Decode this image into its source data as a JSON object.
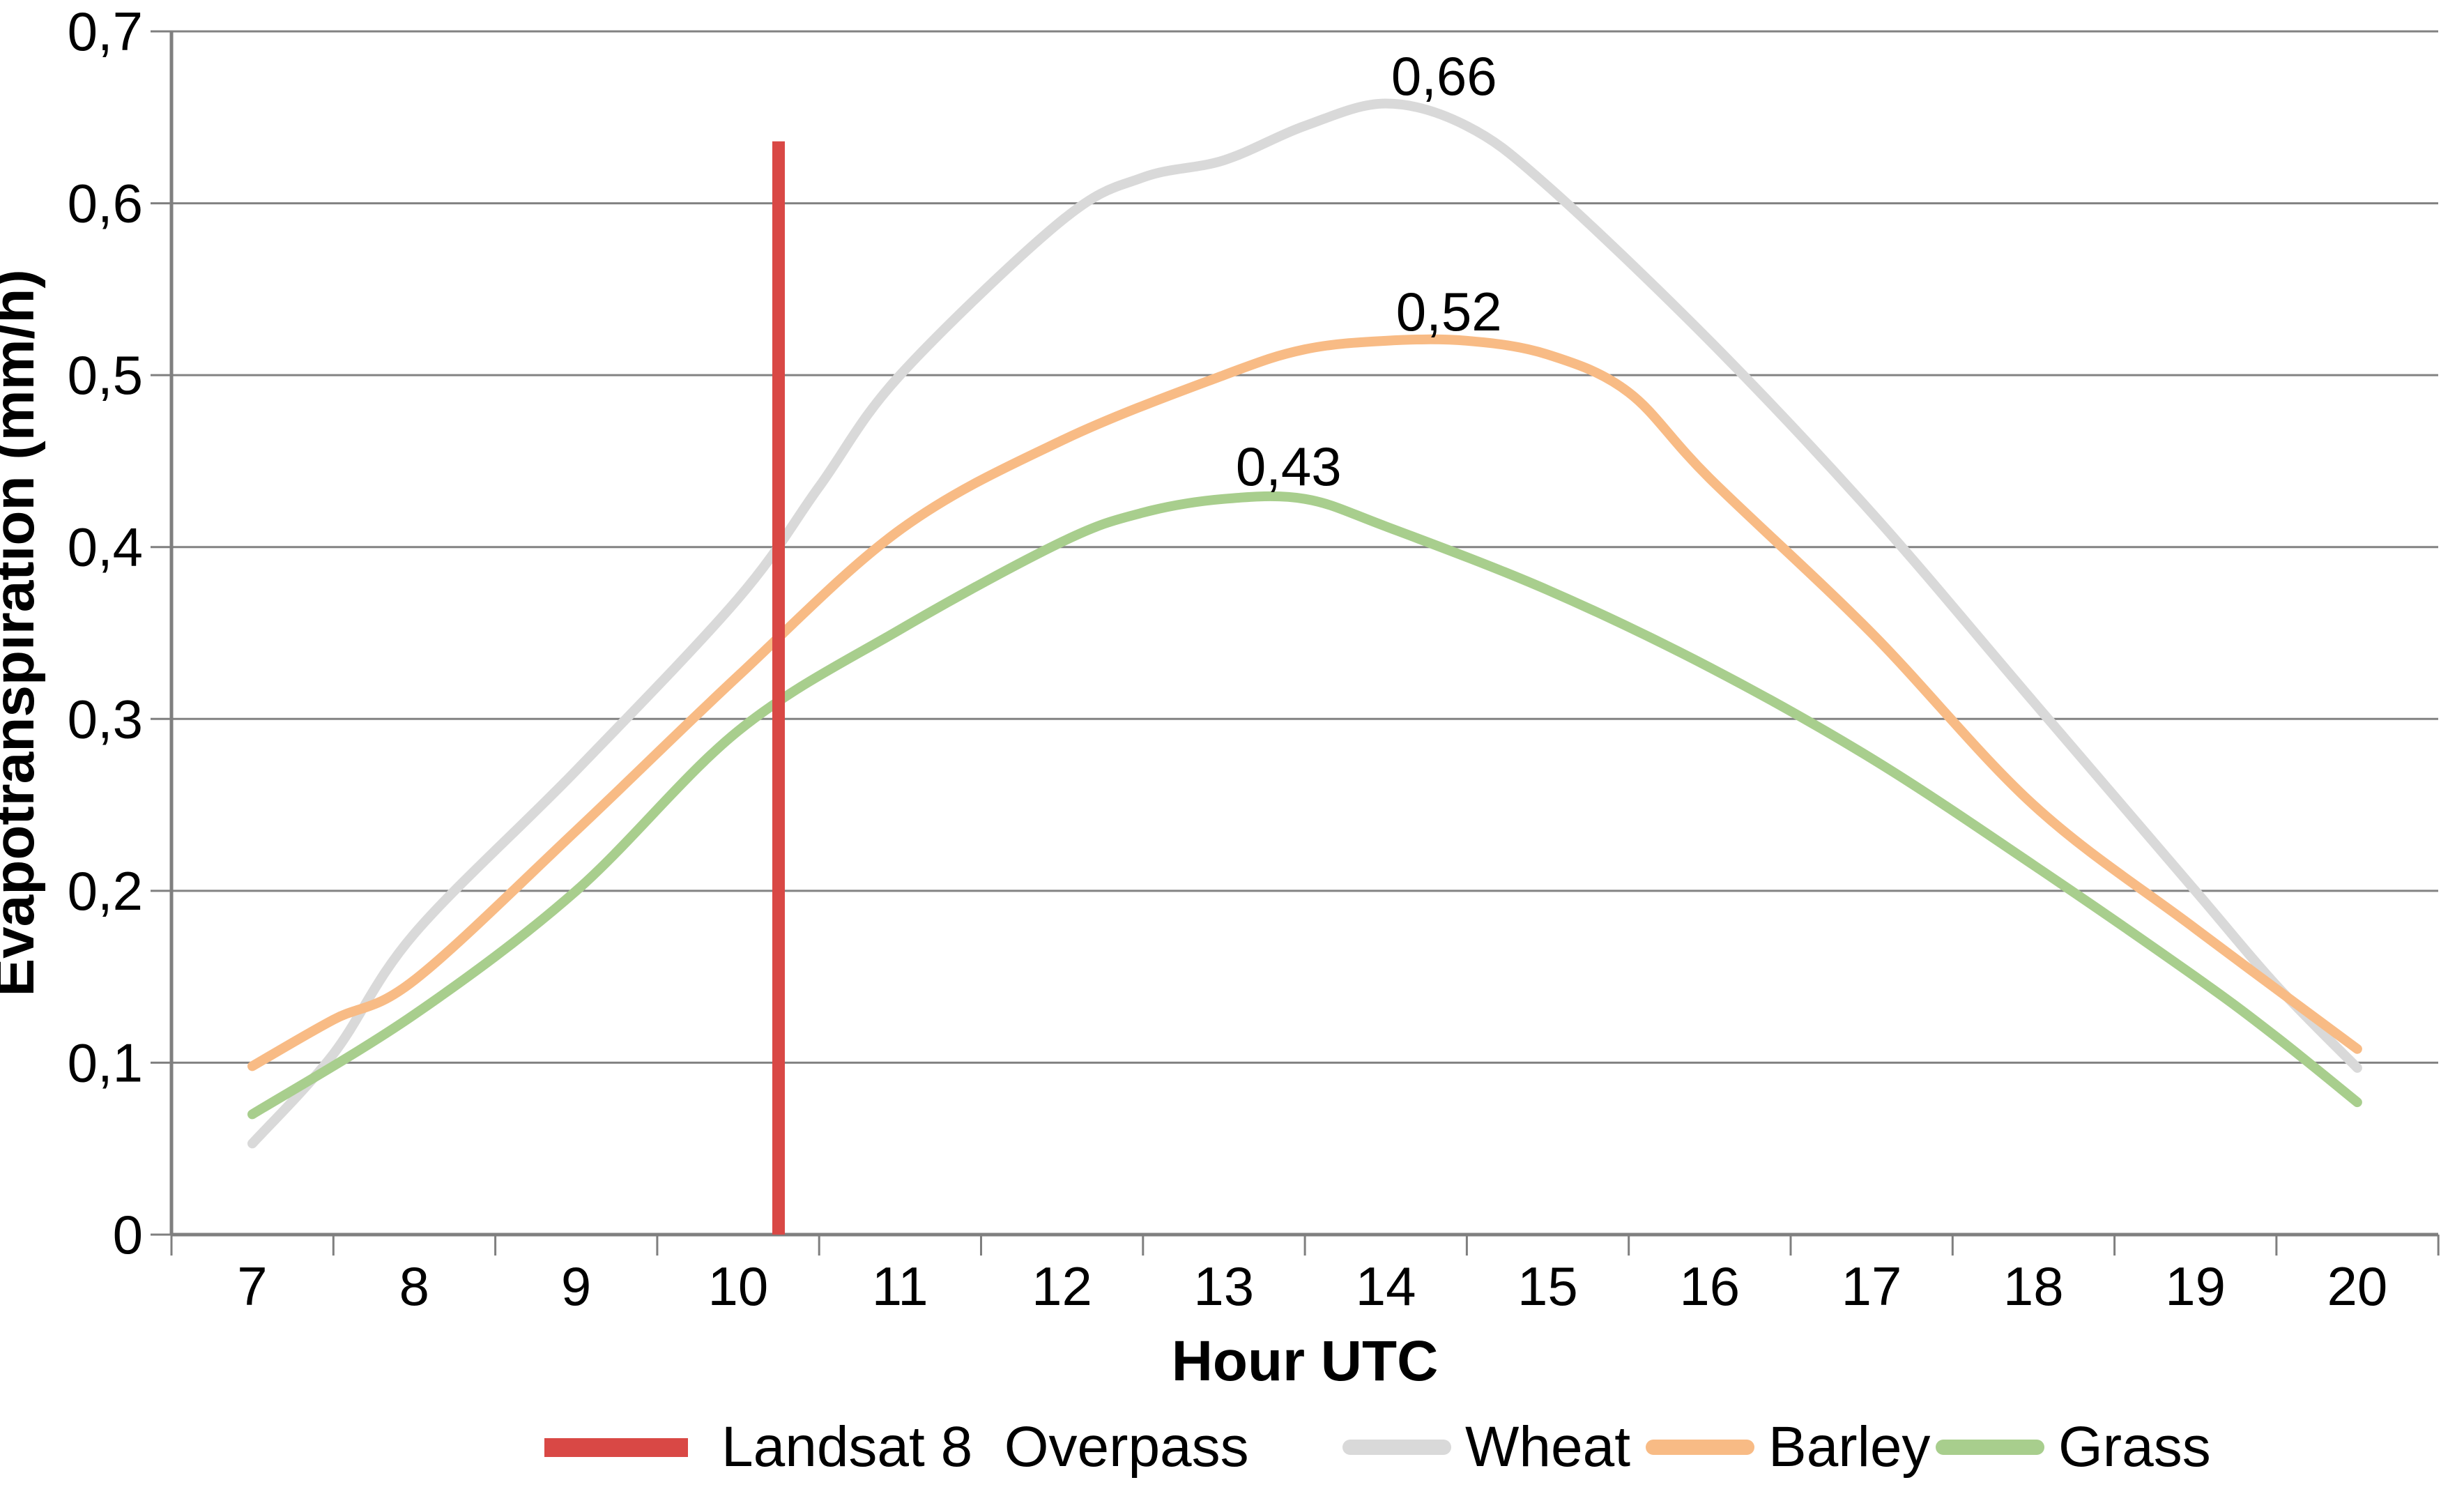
{
  "chart_data": {
    "type": "line",
    "title": "",
    "xlabel": "Hour UTC",
    "ylabel": "Evapotranspiration (mm/h)",
    "x_ticks": [
      "7",
      "8",
      "9",
      "10",
      "11",
      "12",
      "13",
      "14",
      "15",
      "16",
      "17",
      "18",
      "19",
      "20"
    ],
    "y_ticks": [
      "0",
      "0,1",
      "0,2",
      "0,3",
      "0,4",
      "0,5",
      "0,6",
      "0,7"
    ],
    "xlim": [
      6.5,
      20.5
    ],
    "ylim": [
      0,
      0.7
    ],
    "grid": "horizontal-only",
    "legend_position": "bottom",
    "series": [
      {
        "name": "Wheat",
        "color": "#D9D9D9",
        "x": [
          7,
          7.5,
          8,
          9,
          10,
          10.5,
          11,
          12,
          12.5,
          13,
          13.5,
          14,
          14.5,
          15,
          16,
          17,
          18,
          19,
          19.5,
          20
        ],
        "values": [
          0.053,
          0.105,
          0.175,
          0.27,
          0.37,
          0.435,
          0.5,
          0.59,
          0.615,
          0.625,
          0.645,
          0.658,
          0.645,
          0.61,
          0.52,
          0.42,
          0.31,
          0.2,
          0.145,
          0.097
        ]
      },
      {
        "name": "Barley",
        "color": "#F8BB85",
        "x": [
          7,
          7.5,
          8,
          9,
          10,
          11,
          12,
          13,
          13.5,
          14,
          14.5,
          15,
          15.5,
          16,
          17,
          18,
          19,
          20
        ],
        "values": [
          0.098,
          0.125,
          0.148,
          0.235,
          0.325,
          0.41,
          0.462,
          0.5,
          0.515,
          0.52,
          0.52,
          0.512,
          0.49,
          0.44,
          0.35,
          0.25,
          0.178,
          0.108
        ]
      },
      {
        "name": "Grass",
        "color": "#A8CE8D",
        "x": [
          7,
          8,
          9,
          10,
          11,
          12,
          12.5,
          13,
          13.5,
          14,
          15,
          16,
          17,
          18,
          19,
          19.5,
          20
        ],
        "values": [
          0.07,
          0.128,
          0.2,
          0.293,
          0.352,
          0.403,
          0.42,
          0.428,
          0.428,
          0.412,
          0.375,
          0.33,
          0.277,
          0.215,
          0.15,
          0.115,
          0.077
        ]
      }
    ],
    "overpass_line": {
      "label": "Landsat 8  Overpass",
      "color": "#D94845",
      "hour": 10.25,
      "value_bottom": 0,
      "value_top": 0.636
    },
    "point_labels": [
      {
        "text": "0,66",
        "series": "Wheat",
        "hour": 14.36,
        "value": 0.674
      },
      {
        "text": "0,52",
        "series": "Barley",
        "hour": 14.39,
        "value": 0.537
      },
      {
        "text": "0,43",
        "series": "Grass",
        "hour": 13.4,
        "value": 0.447
      }
    ],
    "legend": {
      "items": [
        {
          "label": "Landsat 8  Overpass",
          "color": "#D94845",
          "shape": "bar"
        },
        {
          "label": "Wheat",
          "color": "#D9D9D9",
          "shape": "round-line"
        },
        {
          "label": "Barley",
          "color": "#F8BB85",
          "shape": "round-line"
        },
        {
          "label": "Grass",
          "color": "#A8CE8D",
          "shape": "round-line"
        }
      ]
    }
  },
  "colors": {
    "grid": "#828282",
    "axis": "#7F7F7F",
    "text": "#000000",
    "background": "#FFFFFF"
  }
}
